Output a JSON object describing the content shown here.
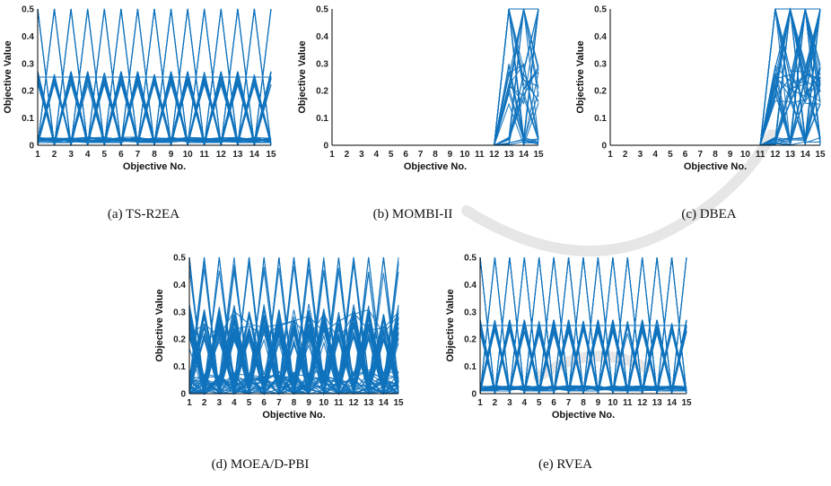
{
  "colors": {
    "series": "#0f72bd",
    "axis": "#000000",
    "watermark": "#e6e6e6"
  },
  "chart_data": [
    {
      "id": "a",
      "type": "line",
      "caption": "(a) TS-R2EA",
      "xlabel": "Objective No.",
      "ylabel": "Objective Value",
      "xlim": [
        1,
        15
      ],
      "ylim": [
        0,
        0.5
      ],
      "xticks": [
        "1",
        "2",
        "3",
        "4",
        "5",
        "6",
        "7",
        "8",
        "9",
        "10",
        "11",
        "12",
        "13",
        "14",
        "15"
      ],
      "yticks": [
        "0",
        "0.1",
        "0.2",
        "0.3",
        "0.4",
        "0.5"
      ],
      "pattern": "periodic",
      "series_count": 80
    },
    {
      "id": "b",
      "type": "line",
      "caption": "(b) MOMBI-II",
      "xlabel": "Objective No.",
      "ylabel": "Objective Value",
      "xlim": [
        1,
        15
      ],
      "ylim": [
        0,
        0.5
      ],
      "xticks": [
        "1",
        "2",
        "3",
        "4",
        "5",
        "6",
        "7",
        "8",
        "9",
        "10",
        "11",
        "12",
        "13",
        "14",
        "15"
      ],
      "yticks": [
        "0",
        "0.1",
        "0.2",
        "0.3",
        "0.4",
        "0.5"
      ],
      "pattern": "tail",
      "active_from": 12,
      "series_count": 40
    },
    {
      "id": "c",
      "type": "line",
      "caption": "(c) DBEA",
      "xlabel": "Objective No.",
      "ylabel": "Objective Value",
      "xlim": [
        1,
        15
      ],
      "ylim": [
        0,
        0.5
      ],
      "xticks": [
        "1",
        "2",
        "3",
        "4",
        "5",
        "6",
        "7",
        "8",
        "9",
        "10",
        "11",
        "12",
        "13",
        "14",
        "15"
      ],
      "yticks": [
        "0",
        "0.1",
        "0.2",
        "0.3",
        "0.4",
        "0.5"
      ],
      "pattern": "tail",
      "active_from": 11,
      "series_count": 60
    },
    {
      "id": "d",
      "type": "line",
      "caption": "(d) MOEA/D-PBI",
      "xlabel": "Objective No.",
      "ylabel": "Objective Value",
      "xlim": [
        1,
        15
      ],
      "ylim": [
        0,
        0.5
      ],
      "xticks": [
        "1",
        "2",
        "3",
        "4",
        "5",
        "6",
        "7",
        "8",
        "9",
        "10",
        "11",
        "12",
        "13",
        "14",
        "15"
      ],
      "yticks": [
        "0",
        "0.1",
        "0.2",
        "0.3",
        "0.4",
        "0.5"
      ],
      "pattern": "noisy",
      "series_count": 80
    },
    {
      "id": "e",
      "type": "line",
      "caption": "(e) RVEA",
      "xlabel": "Objective No.",
      "ylabel": "Objective Value",
      "xlim": [
        1,
        15
      ],
      "ylim": [
        0,
        0.5
      ],
      "xticks": [
        "1",
        "2",
        "3",
        "4",
        "5",
        "6",
        "7",
        "8",
        "9",
        "10",
        "11",
        "12",
        "13",
        "14",
        "15"
      ],
      "yticks": [
        "0",
        "0.1",
        "0.2",
        "0.3",
        "0.4",
        "0.5"
      ],
      "pattern": "periodic",
      "series_count": 80
    }
  ]
}
